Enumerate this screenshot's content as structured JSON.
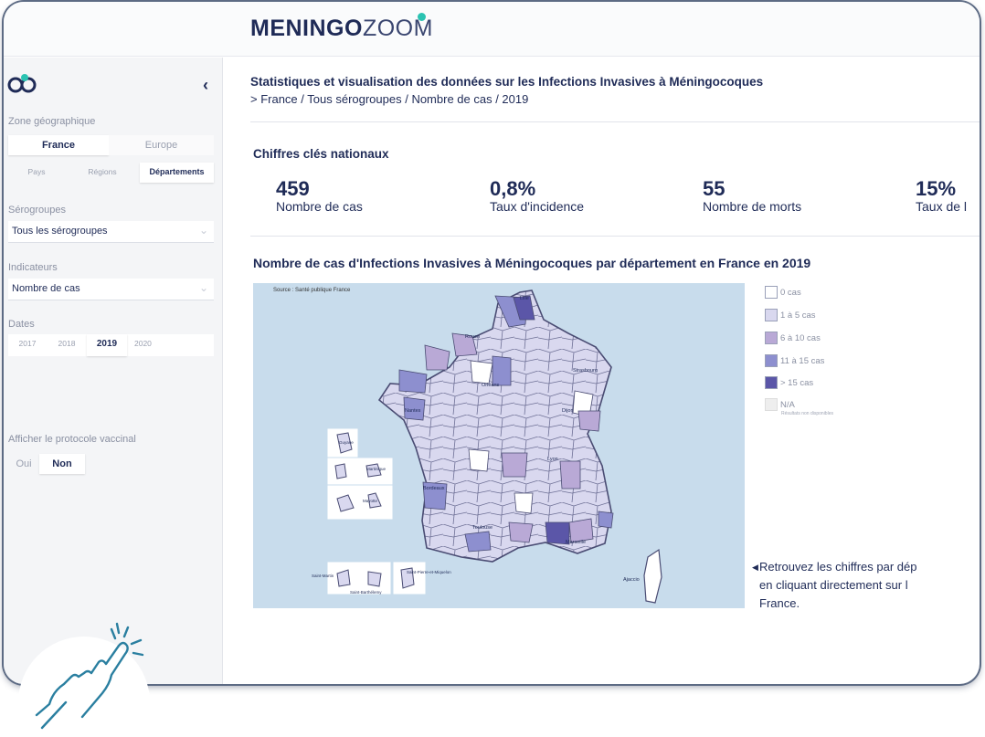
{
  "app": {
    "logo_bold": "MENINGO",
    "logo_light": "ZOOM"
  },
  "sidebar": {
    "zone_label": "Zone géographique",
    "zone_options": [
      "France",
      "Europe"
    ],
    "zone_selected": "France",
    "level_options": [
      "Pays",
      "Régions",
      "Départements"
    ],
    "level_selected": "Départements",
    "serogroups_label": "Sérogroupes",
    "serogroups_value": "Tous les sérogroupes",
    "indicators_label": "Indicateurs",
    "indicators_value": "Nombre de cas",
    "dates_label": "Dates",
    "dates_options": [
      "2017",
      "2018",
      "2019",
      "2020"
    ],
    "date_selected": "2019",
    "vaccine_label": "Afficher le protocole vaccinal",
    "vaccine_options": [
      "Oui",
      "Non"
    ],
    "vaccine_selected": "Non"
  },
  "header": {
    "title": "Statistiques et visualisation des données sur les Infections Invasives à Méningocoques",
    "breadcrumb": "> France / Tous sérogroupes / Nombre de cas / 2019"
  },
  "kpis": {
    "title": "Chiffres clés nationaux",
    "items": [
      {
        "value": "459",
        "label": "Nombre de cas"
      },
      {
        "value": "0,8%",
        "label": "Taux d'incidence"
      },
      {
        "value": "55",
        "label": "Nombre de morts"
      },
      {
        "value": "15%",
        "label": "Taux de l"
      }
    ]
  },
  "map": {
    "title": "Nombre de cas d'Infections Invasives à Méningocoques par département en France en 2019",
    "source": "Source : Santé publique France",
    "city_labels": [
      "Lille",
      "Rouen",
      "Strasbourg",
      "Orléans",
      "Nantes",
      "Dijon",
      "Lyon",
      "Bordeaux",
      "Toulouse",
      "Marseille",
      "Ajaccio",
      "Guyane",
      "Martinique",
      "Mayotte",
      "Saint-Martin",
      "Saint-Barthélemy",
      "Saint-Pierre-et-Miquelon"
    ],
    "legend": [
      {
        "label": "0 cas",
        "color": "#ffffff"
      },
      {
        "label": "1 à 5 cas",
        "color": "#d9d8ef"
      },
      {
        "label": "6 à 10 cas",
        "color": "#b9a9d6"
      },
      {
        "label": "11 à 15 cas",
        "color": "#8d8fcf"
      },
      {
        "label": "> 15 cas",
        "color": "#5b56a8"
      },
      {
        "label": "N/A",
        "color": "#eeeeee"
      }
    ],
    "legend_na_sub": "Résultats non disponibles",
    "note_lines": [
      "Retrouvez les chiffres par dép",
      "en cliquant directement sur l",
      "France."
    ]
  },
  "colors": {
    "navy": "#1f2b57",
    "teal": "#2bc3b2",
    "hand": "#2a7fa0"
  }
}
